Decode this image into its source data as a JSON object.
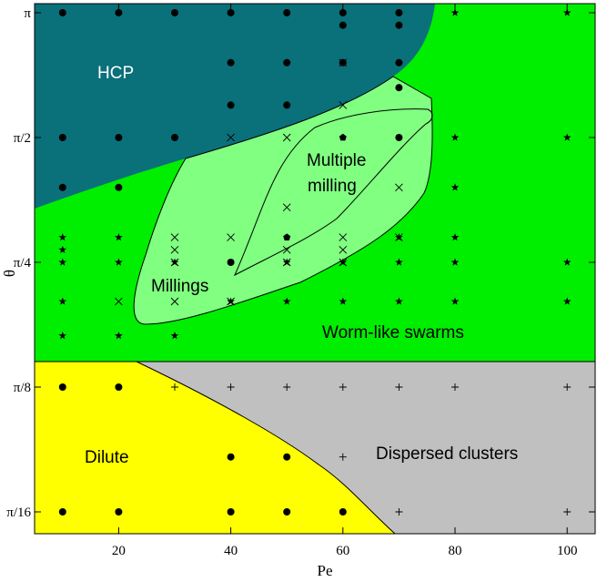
{
  "chart_data": {
    "type": "scatter",
    "title": "",
    "xlabel": "Pe",
    "ylabel": "θ",
    "xlim": [
      5,
      105
    ],
    "ylim": [
      0,
      1
    ],
    "x_ticks": [
      20,
      40,
      60,
      80,
      100
    ],
    "y_ticks": [
      {
        "label": "π",
        "value": 1.0
      },
      {
        "label": "π/2",
        "value": 0.5
      },
      {
        "label": "π/4",
        "value": 0.25
      },
      {
        "label": "π/8",
        "value": 0.125
      },
      {
        "label": "π/16",
        "value": 0.0625
      }
    ],
    "y_scale_note": "θ in units of π",
    "colors": {
      "hcp": "#0a707a",
      "worm": "#00ee00",
      "milling": "#80ff80",
      "dilute": "#ffff00",
      "dispersed": "#c0c0c0",
      "marker": "#000000"
    },
    "regions": [
      {
        "name": "HCP",
        "label": "HCP"
      },
      {
        "name": "Worm-like swarms",
        "label": "Worm-like swarms"
      },
      {
        "name": "Millings",
        "label": "Millings"
      },
      {
        "name": "Multiple milling",
        "label": "Multiple\nmilling"
      },
      {
        "name": "Dilute",
        "label": "Dilute"
      },
      {
        "name": "Dispersed clusters",
        "label": "Dispersed clusters"
      }
    ],
    "series": [
      {
        "marker": "circle",
        "points": [
          [
            10,
            1.0
          ],
          [
            20,
            1.0
          ],
          [
            30,
            1.0
          ],
          [
            40,
            1.0
          ],
          [
            50,
            1.0
          ],
          [
            60,
            1.0
          ],
          [
            70,
            1.0
          ],
          [
            60,
            0.95
          ],
          [
            70,
            0.95
          ],
          [
            40,
            0.8
          ],
          [
            50,
            0.8
          ],
          [
            60,
            0.8
          ],
          [
            70,
            0.8
          ],
          [
            70,
            0.7
          ],
          [
            40,
            0.63
          ],
          [
            50,
            0.63
          ],
          [
            10,
            0.5
          ],
          [
            20,
            0.5
          ],
          [
            30,
            0.5
          ],
          [
            70,
            0.5
          ],
          [
            10,
            0.4
          ],
          [
            20,
            0.4
          ],
          [
            40,
            0.25
          ],
          [
            10,
            0.125
          ],
          [
            20,
            0.125
          ],
          [
            40,
            0.09
          ],
          [
            50,
            0.09
          ],
          [
            10,
            0.0625
          ],
          [
            20,
            0.0625
          ],
          [
            40,
            0.0625
          ],
          [
            50,
            0.0625
          ],
          [
            60,
            0.0625
          ]
        ]
      },
      {
        "marker": "pentagon",
        "points": [
          [
            60,
            0.5
          ],
          [
            50,
            0.3
          ]
        ]
      },
      {
        "marker": "star",
        "points": [
          [
            80,
            1.0
          ],
          [
            100,
            1.0
          ],
          [
            80,
            0.5
          ],
          [
            100,
            0.5
          ],
          [
            80,
            0.4
          ],
          [
            70,
            0.3
          ],
          [
            80,
            0.3
          ],
          [
            10,
            0.3
          ],
          [
            20,
            0.3
          ],
          [
            10,
            0.275
          ],
          [
            10,
            0.25
          ],
          [
            20,
            0.25
          ],
          [
            30,
            0.25
          ],
          [
            50,
            0.25
          ],
          [
            60,
            0.25
          ],
          [
            70,
            0.25
          ],
          [
            80,
            0.25
          ],
          [
            100,
            0.25
          ],
          [
            10,
            0.2
          ],
          [
            40,
            0.2
          ],
          [
            50,
            0.2
          ],
          [
            60,
            0.2
          ],
          [
            70,
            0.2
          ],
          [
            80,
            0.2
          ],
          [
            100,
            0.2
          ],
          [
            10,
            0.17
          ],
          [
            20,
            0.17
          ],
          [
            30,
            0.17
          ]
        ]
      },
      {
        "marker": "cross",
        "points": [
          [
            60,
            0.63
          ],
          [
            60,
            0.8
          ],
          [
            40,
            0.5
          ],
          [
            50,
            0.5
          ],
          [
            70,
            0.4
          ],
          [
            70,
            0.3
          ],
          [
            50,
            0.36
          ],
          [
            30,
            0.3
          ],
          [
            40,
            0.3
          ],
          [
            60,
            0.3
          ],
          [
            30,
            0.275
          ],
          [
            50,
            0.275
          ],
          [
            60,
            0.275
          ],
          [
            30,
            0.25
          ],
          [
            50,
            0.25
          ],
          [
            60,
            0.25
          ],
          [
            20,
            0.2
          ],
          [
            30,
            0.2
          ],
          [
            40,
            0.2
          ]
        ]
      },
      {
        "marker": "plus",
        "points": [
          [
            30,
            0.125
          ],
          [
            40,
            0.125
          ],
          [
            50,
            0.125
          ],
          [
            60,
            0.125
          ],
          [
            70,
            0.125
          ],
          [
            80,
            0.125
          ],
          [
            100,
            0.125
          ],
          [
            60,
            0.09
          ],
          [
            70,
            0.0625
          ],
          [
            100,
            0.0625
          ]
        ]
      }
    ]
  }
}
